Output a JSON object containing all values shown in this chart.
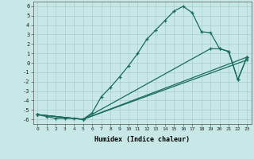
{
  "line1_x": [
    0,
    1,
    2,
    3,
    4,
    5,
    6,
    7,
    8,
    9,
    10,
    11,
    12,
    13,
    14,
    15,
    16,
    17,
    18,
    19,
    20,
    21,
    22,
    23
  ],
  "line1_y": [
    -5.5,
    -5.7,
    -5.9,
    -5.9,
    -5.9,
    -6.0,
    -5.3,
    -3.6,
    -2.6,
    -1.5,
    -0.3,
    1.0,
    2.5,
    3.5,
    4.5,
    5.5,
    6.0,
    5.3,
    3.3,
    3.2,
    1.5,
    1.2,
    -1.8,
    0.6
  ],
  "line2_x": [
    0,
    5,
    23
  ],
  "line2_y": [
    -5.5,
    -6.0,
    0.6
  ],
  "line3_x": [
    0,
    5,
    19,
    20,
    21,
    22,
    23
  ],
  "line3_y": [
    -5.5,
    -6.0,
    1.5,
    1.5,
    1.2,
    -1.8,
    0.6
  ],
  "line4_x": [
    0,
    5,
    23
  ],
  "line4_y": [
    -5.5,
    -6.0,
    0.3
  ],
  "line_color": "#1a6b5a",
  "bg_color": "#c8e8e8",
  "grid_color": "#a8cece",
  "xlabel": "Humidex (Indice chaleur)",
  "xlim": [
    -0.5,
    23.5
  ],
  "ylim": [
    -6.5,
    6.5
  ],
  "xticks": [
    0,
    1,
    2,
    3,
    4,
    5,
    6,
    7,
    8,
    9,
    10,
    11,
    12,
    13,
    14,
    15,
    16,
    17,
    18,
    19,
    20,
    21,
    22,
    23
  ],
  "yticks": [
    -6,
    -5,
    -4,
    -3,
    -2,
    -1,
    0,
    1,
    2,
    3,
    4,
    5,
    6
  ]
}
